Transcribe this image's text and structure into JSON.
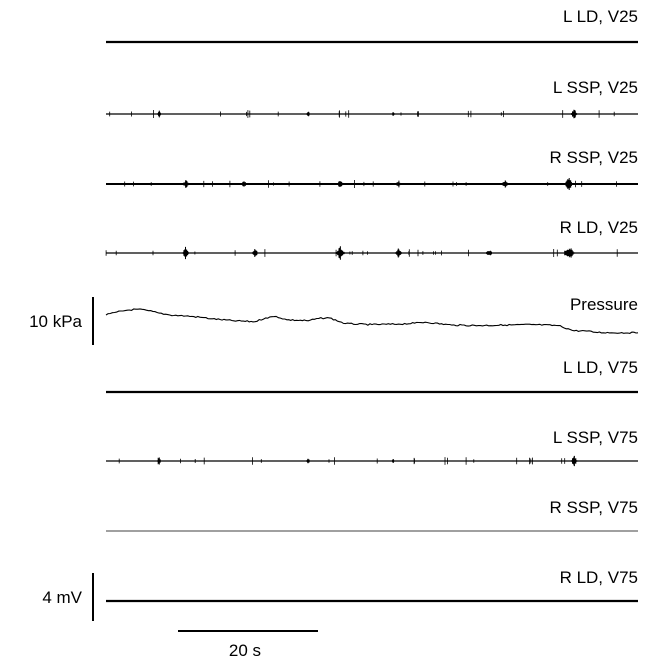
{
  "chart_data": {
    "type": "line",
    "title": "",
    "series": [
      {
        "name": "L LD, V25",
        "activity": "flat"
      },
      {
        "name": "L SSP, V25",
        "activity": "sparse-bursts"
      },
      {
        "name": "R SSP, V25",
        "activity": "bursts"
      },
      {
        "name": "R LD, V25",
        "activity": "strong-bursts"
      },
      {
        "name": "Pressure",
        "activity": "pressure-trace"
      },
      {
        "name": "L LD, V75",
        "activity": "flat"
      },
      {
        "name": "L SSP, V75",
        "activity": "sparse-bursts"
      },
      {
        "name": "R SSP, V75",
        "activity": "thin"
      },
      {
        "name": "R LD, V75",
        "activity": "flat"
      }
    ],
    "pressure_trace": {
      "x_s": [
        0,
        2,
        4,
        6,
        8,
        10,
        12,
        15,
        18,
        20,
        24,
        28,
        30,
        32,
        34,
        38,
        40,
        42,
        45,
        50,
        55,
        58,
        60,
        65,
        70,
        75,
        80,
        85,
        88,
        90,
        92,
        95,
        100
      ],
      "y_kpa": [
        13.6,
        14.2,
        14.6,
        14.8,
        14.5,
        14.0,
        13.6,
        13.4,
        13.1,
        12.8,
        12.4,
        12.2,
        13.0,
        13.3,
        12.6,
        12.4,
        12.9,
        13.0,
        11.8,
        11.6,
        11.7,
        11.9,
        12.1,
        11.5,
        11.4,
        11.5,
        11.6,
        11.4,
        10.3,
        10.3,
        10.0,
        9.9,
        9.9
      ]
    },
    "scale_bars": {
      "pressure": {
        "value": 10,
        "unit": "kPa",
        "label": "10 kPa"
      },
      "emg": {
        "value": 4,
        "unit": "mV",
        "label": "4 mV"
      },
      "time": {
        "value": 20,
        "unit": "s",
        "label": "20 s"
      }
    },
    "x_range_s": [
      0,
      100
    ]
  }
}
